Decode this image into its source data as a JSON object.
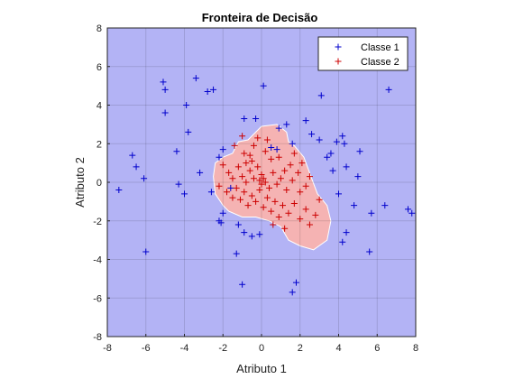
{
  "chart_data": {
    "type": "scatter",
    "title": "Fronteira de Decisão",
    "xlabel": "Atributo 1",
    "ylabel": "Atributo 2",
    "xlim": [
      -8,
      8
    ],
    "ylim": [
      -8,
      8
    ],
    "xticks": [
      "-8",
      "-6",
      "-4",
      "-2",
      "0",
      "2",
      "4",
      "6",
      "8"
    ],
    "yticks": [
      "-8",
      "-6",
      "-4",
      "-2",
      "0",
      "2",
      "4",
      "6",
      "8"
    ],
    "grid": true,
    "legend_position": "top-right",
    "background_region_color": "#b3b3f5",
    "boundary_region_color": "#f5b3b3",
    "boundary_region": [
      [
        -2.4,
        1.0
      ],
      [
        -2.0,
        1.3
      ],
      [
        -1.5,
        1.5
      ],
      [
        -1.2,
        2.1
      ],
      [
        -0.7,
        2.2
      ],
      [
        0.0,
        2.9
      ],
      [
        0.8,
        3.0
      ],
      [
        1.3,
        2.6
      ],
      [
        1.4,
        2.1
      ],
      [
        1.7,
        1.9
      ],
      [
        2.2,
        1.3
      ],
      [
        2.6,
        0.2
      ],
      [
        2.9,
        -0.6
      ],
      [
        3.4,
        -1.2
      ],
      [
        3.6,
        -2.0
      ],
      [
        3.4,
        -3.0
      ],
      [
        2.7,
        -3.5
      ],
      [
        2.0,
        -3.3
      ],
      [
        1.4,
        -3.0
      ],
      [
        1.0,
        -2.3
      ],
      [
        0.4,
        -2.0
      ],
      [
        -0.3,
        -1.8
      ],
      [
        -1.0,
        -1.8
      ],
      [
        -1.7,
        -1.5
      ],
      [
        -2.0,
        -1.2
      ],
      [
        -2.4,
        -0.6
      ],
      [
        -2.5,
        0.3
      ]
    ],
    "series": [
      {
        "name": "Classe 1",
        "color": "#0000cc",
        "marker": "+",
        "points": [
          [
            -7.4,
            -0.4
          ],
          [
            -6.7,
            1.4
          ],
          [
            -6.5,
            0.8
          ],
          [
            -6.1,
            0.2
          ],
          [
            -6.0,
            -3.6
          ],
          [
            -5.1,
            5.2
          ],
          [
            -5.0,
            4.8
          ],
          [
            -5.0,
            3.6
          ],
          [
            -4.4,
            1.6
          ],
          [
            -3.9,
            4.0
          ],
          [
            -3.8,
            2.6
          ],
          [
            -3.4,
            5.4
          ],
          [
            -2.8,
            4.7
          ],
          [
            -2.5,
            4.8
          ],
          [
            -2.2,
            1.3
          ],
          [
            -2.0,
            1.7
          ],
          [
            -3.2,
            0.5
          ],
          [
            -4.0,
            -0.6
          ],
          [
            -4.3,
            -0.1
          ],
          [
            -2.6,
            -0.5
          ],
          [
            -2.2,
            -2.0
          ],
          [
            -2.1,
            -2.1
          ],
          [
            -2.0,
            -1.6
          ],
          [
            -1.6,
            -0.3
          ],
          [
            -1.2,
            -2.2
          ],
          [
            -1.3,
            -3.7
          ],
          [
            -0.9,
            -2.6
          ],
          [
            -1.0,
            -5.3
          ],
          [
            -0.5,
            -2.8
          ],
          [
            -0.1,
            -2.7
          ],
          [
            0.1,
            5.0
          ],
          [
            0.5,
            1.8
          ],
          [
            0.8,
            1.7
          ],
          [
            0.9,
            2.8
          ],
          [
            -0.9,
            3.3
          ],
          [
            -0.3,
            3.3
          ],
          [
            1.3,
            3.0
          ],
          [
            1.6,
            2.0
          ],
          [
            2.3,
            3.2
          ],
          [
            2.6,
            2.5
          ],
          [
            3.1,
            4.5
          ],
          [
            3.0,
            2.2
          ],
          [
            3.4,
            1.3
          ],
          [
            3.6,
            1.5
          ],
          [
            3.9,
            2.1
          ],
          [
            4.2,
            2.4
          ],
          [
            4.3,
            2.0
          ],
          [
            4.4,
            0.8
          ],
          [
            5.1,
            1.6
          ],
          [
            5.0,
            0.3
          ],
          [
            4.0,
            -0.6
          ],
          [
            4.2,
            -3.1
          ],
          [
            4.8,
            -1.2
          ],
          [
            5.7,
            -1.6
          ],
          [
            5.6,
            -3.6
          ],
          [
            6.4,
            -1.2
          ],
          [
            6.6,
            4.8
          ],
          [
            7.6,
            -1.4
          ],
          [
            7.8,
            -1.6
          ],
          [
            1.8,
            -5.2
          ],
          [
            1.6,
            -5.7
          ],
          [
            4.4,
            -2.6
          ],
          [
            3.7,
            0.6
          ]
        ]
      },
      {
        "name": "Classe 2",
        "color": "#cc0000",
        "marker": "+",
        "points": [
          [
            -1.4,
            1.9
          ],
          [
            -1.0,
            2.4
          ],
          [
            -0.8,
            1.0
          ],
          [
            -0.6,
            1.4
          ],
          [
            -0.4,
            1.9
          ],
          [
            -0.2,
            2.3
          ],
          [
            0.3,
            2.2
          ],
          [
            0.5,
            1.2
          ],
          [
            0.9,
            1.3
          ],
          [
            1.2,
            0.6
          ],
          [
            1.5,
            0.9
          ],
          [
            1.9,
            0.5
          ],
          [
            2.1,
            1.0
          ],
          [
            -1.7,
            0.5
          ],
          [
            -1.5,
            0.2
          ],
          [
            -1.2,
            0.8
          ],
          [
            -1.0,
            0.3
          ],
          [
            -0.8,
            0.0
          ],
          [
            -0.6,
            0.6
          ],
          [
            -0.4,
            0.2
          ],
          [
            -0.2,
            0.8
          ],
          [
            0.0,
            0.4
          ],
          [
            0.2,
            0.0
          ],
          [
            0.4,
            -0.3
          ],
          [
            0.6,
            0.5
          ],
          [
            0.8,
            -0.1
          ],
          [
            1.0,
            0.2
          ],
          [
            1.3,
            -0.4
          ],
          [
            1.6,
            0.1
          ],
          [
            2.0,
            -0.5
          ],
          [
            2.3,
            -0.2
          ],
          [
            -1.8,
            -0.5
          ],
          [
            -1.5,
            -0.8
          ],
          [
            -1.3,
            -0.3
          ],
          [
            -1.1,
            -0.9
          ],
          [
            -0.9,
            -0.5
          ],
          [
            -0.7,
            -1.2
          ],
          [
            -0.5,
            -0.7
          ],
          [
            -0.3,
            -1.0
          ],
          [
            -0.1,
            -0.4
          ],
          [
            0.1,
            -1.3
          ],
          [
            0.3,
            -0.8
          ],
          [
            0.5,
            -1.5
          ],
          [
            0.7,
            -1.0
          ],
          [
            0.9,
            -1.8
          ],
          [
            1.1,
            -1.2
          ],
          [
            1.4,
            -1.6
          ],
          [
            1.7,
            -1.1
          ],
          [
            2.0,
            -1.9
          ],
          [
            2.3,
            -1.4
          ],
          [
            2.5,
            -2.2
          ],
          [
            2.8,
            -1.7
          ],
          [
            3.0,
            -0.9
          ],
          [
            1.2,
            -2.4
          ],
          [
            0.6,
            -2.2
          ],
          [
            -0.5,
            1.1
          ],
          [
            0.2,
            1.6
          ],
          [
            -0.9,
            1.5
          ],
          [
            1.7,
            1.5
          ],
          [
            2.5,
            0.3
          ],
          [
            -2.0,
            0.9
          ],
          [
            -2.2,
            -0.2
          ],
          [
            0.0,
            -0.1
          ],
          [
            0.1,
            0.2
          ],
          [
            -0.1,
            0.1
          ]
        ]
      }
    ]
  }
}
